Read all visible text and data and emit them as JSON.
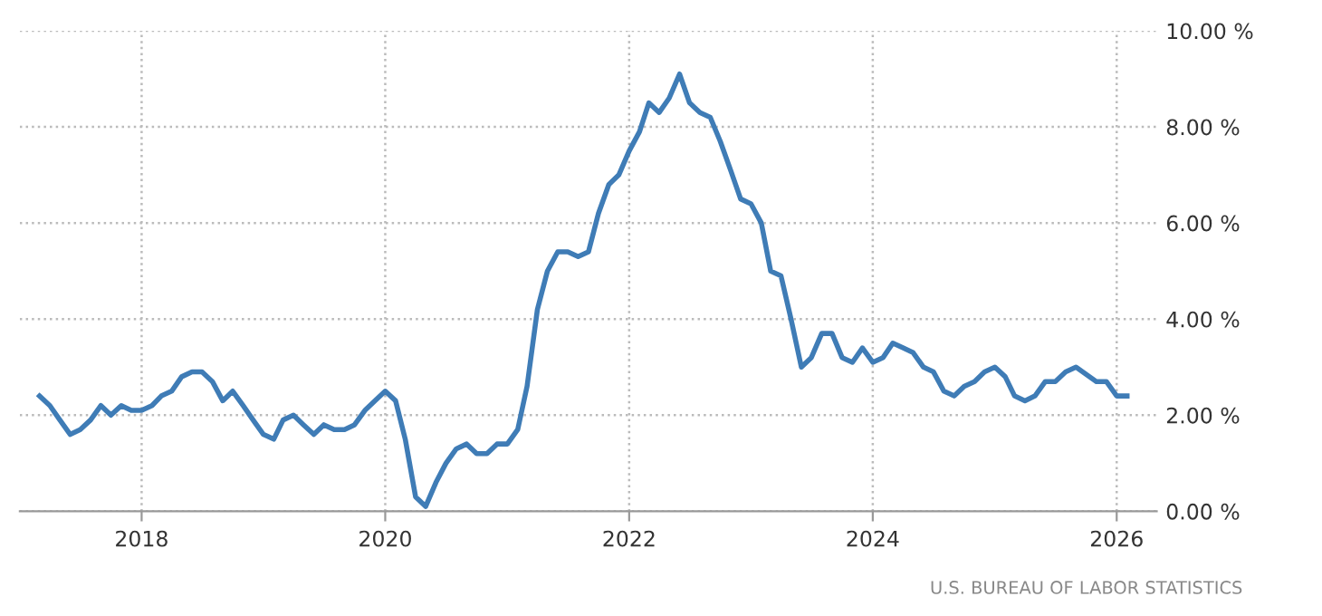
{
  "chart_data": {
    "type": "line",
    "x": [
      "2017-03",
      "2017-04",
      "2017-05",
      "2017-06",
      "2017-07",
      "2017-08",
      "2017-09",
      "2017-10",
      "2017-11",
      "2017-12",
      "2018-01",
      "2018-02",
      "2018-03",
      "2018-04",
      "2018-05",
      "2018-06",
      "2018-07",
      "2018-08",
      "2018-09",
      "2018-10",
      "2018-11",
      "2018-12",
      "2019-01",
      "2019-02",
      "2019-03",
      "2019-04",
      "2019-05",
      "2019-06",
      "2019-07",
      "2019-08",
      "2019-09",
      "2019-10",
      "2019-11",
      "2019-12",
      "2020-01",
      "2020-02",
      "2020-03",
      "2020-04",
      "2020-05",
      "2020-06",
      "2020-07",
      "2020-08",
      "2020-09",
      "2020-10",
      "2020-11",
      "2020-12",
      "2021-01",
      "2021-02",
      "2021-03",
      "2021-04",
      "2021-05",
      "2021-06",
      "2021-07",
      "2021-08",
      "2021-09",
      "2021-10",
      "2021-11",
      "2021-12",
      "2022-01",
      "2022-02",
      "2022-03",
      "2022-04",
      "2022-05",
      "2022-06",
      "2022-07",
      "2022-08",
      "2022-09",
      "2022-10",
      "2022-11",
      "2022-12",
      "2023-01",
      "2023-02",
      "2023-03",
      "2023-04",
      "2023-05",
      "2023-06",
      "2023-07",
      "2023-08",
      "2023-09",
      "2023-10",
      "2023-11",
      "2023-12",
      "2024-01",
      "2024-02",
      "2024-03",
      "2024-04",
      "2024-05",
      "2024-06",
      "2024-07",
      "2024-08",
      "2024-09",
      "2024-10",
      "2024-11",
      "2024-12",
      "2025-01",
      "2025-02",
      "2025-03",
      "2025-04",
      "2025-05",
      "2025-06",
      "2025-07",
      "2025-08",
      "2025-09",
      "2025-11",
      "2025-12",
      "2026-01",
      "2026-02"
    ],
    "series": [
      {
        "color": "#3f7cb6",
        "values": [
          2.4,
          2.2,
          1.9,
          1.6,
          1.7,
          1.9,
          2.2,
          2.0,
          2.2,
          2.1,
          2.1,
          2.2,
          2.4,
          2.5,
          2.8,
          2.9,
          2.9,
          2.7,
          2.3,
          2.5,
          2.2,
          1.9,
          1.6,
          1.5,
          1.9,
          2.0,
          1.8,
          1.6,
          1.8,
          1.7,
          1.7,
          1.8,
          2.1,
          2.3,
          2.5,
          2.3,
          1.5,
          0.3,
          0.1,
          0.6,
          1.0,
          1.3,
          1.4,
          1.2,
          1.2,
          1.4,
          1.4,
          1.7,
          2.6,
          4.2,
          5.0,
          5.4,
          5.4,
          5.3,
          5.4,
          6.2,
          6.8,
          7.0,
          7.5,
          7.9,
          8.5,
          8.3,
          8.6,
          9.1,
          8.5,
          8.3,
          8.2,
          7.7,
          7.1,
          6.5,
          6.4,
          6.0,
          5.0,
          4.9,
          4.0,
          3.0,
          3.2,
          3.7,
          3.7,
          3.2,
          3.1,
          3.4,
          3.1,
          3.2,
          3.5,
          3.4,
          3.3,
          3.0,
          2.9,
          2.5,
          2.4,
          2.6,
          2.7,
          2.9,
          3.0,
          2.8,
          2.4,
          2.3,
          2.4,
          2.7,
          2.7,
          2.9,
          3.0,
          2.7,
          2.7,
          2.4,
          2.4
        ]
      }
    ],
    "xlim": [
      "2017-01",
      "2026-05"
    ],
    "xticks": [
      {
        "value": "2018-01",
        "label": "2018"
      },
      {
        "value": "2020-01",
        "label": "2020"
      },
      {
        "value": "2022-01",
        "label": "2022"
      },
      {
        "value": "2024-01",
        "label": "2024"
      },
      {
        "value": "2026-01",
        "label": "2026"
      }
    ],
    "ylim": [
      0,
      10
    ],
    "yticks": [
      {
        "value": 0,
        "label": "0.00 %"
      },
      {
        "value": 2,
        "label": "2.00 %"
      },
      {
        "value": 4,
        "label": "4.00 %"
      },
      {
        "value": 6,
        "label": "6.00 %"
      },
      {
        "value": 8,
        "label": "8.00 %"
      },
      {
        "value": 10,
        "label": "10.00 %"
      }
    ],
    "grid": true,
    "legend": false,
    "annotations": [
      "U.S. BUREAU OF LABOR STATISTICS"
    ]
  }
}
